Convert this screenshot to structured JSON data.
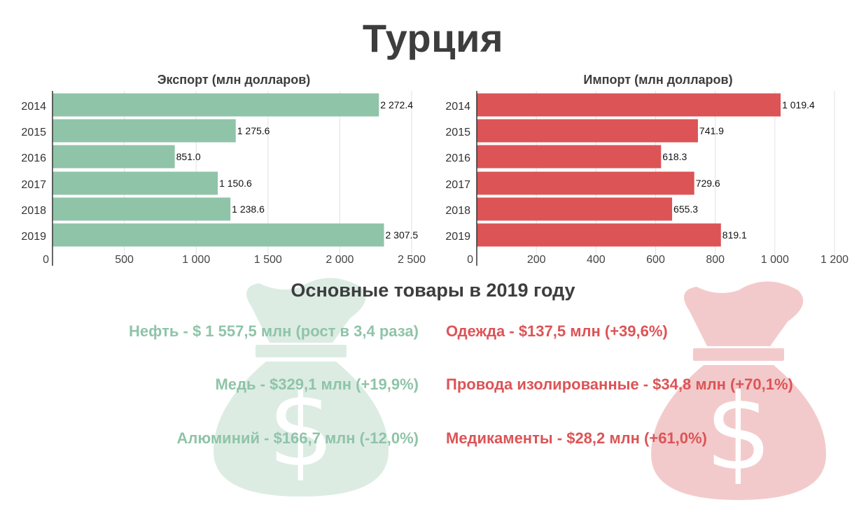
{
  "title": "Турция",
  "colors": {
    "export": "#8fc4a8",
    "import": "#dc5456",
    "export_bag": "#dcece3",
    "import_bag": "#f3cacb"
  },
  "chart_data": [
    {
      "type": "bar",
      "orientation": "horizontal",
      "title": "Экспорт (млн долларов)",
      "categories": [
        "2014",
        "2015",
        "2016",
        "2017",
        "2018",
        "2019"
      ],
      "values": [
        2272.4,
        1275.6,
        851.0,
        1150.6,
        1238.6,
        2307.5
      ],
      "value_labels": [
        "2 272.4",
        "1 275.6",
        "851.0",
        "1 150.6",
        "1 238.6",
        "2 307.5"
      ],
      "xlim": [
        0,
        2500
      ],
      "xticks": [
        0,
        500,
        1000,
        1500,
        2000,
        2500
      ],
      "xtick_labels": [
        "0",
        "500",
        "1 000",
        "1 500",
        "2 000",
        "2 500"
      ],
      "grid": true
    },
    {
      "type": "bar",
      "orientation": "horizontal",
      "title": "Импорт (млн долларов)",
      "categories": [
        "2014",
        "2015",
        "2016",
        "2017",
        "2018",
        "2019"
      ],
      "values": [
        1019.4,
        741.9,
        618.3,
        729.6,
        655.3,
        819.1
      ],
      "value_labels": [
        "1 019.4",
        "741.9",
        "618.3",
        "729.6",
        "655.3",
        "819.1"
      ],
      "xlim": [
        0,
        1200
      ],
      "xticks": [
        0,
        200,
        400,
        600,
        800,
        1000,
        1200
      ],
      "xtick_labels": [
        "0",
        "200",
        "400",
        "600",
        "800",
        "1 000",
        "1 200"
      ],
      "grid": true
    }
  ],
  "goods": {
    "heading": "Основные товары в 2019 году",
    "export": [
      "Нефть - $ 1 557,5 млн (рост в 3,4 раза)",
      "Медь - $329,1 млн (+19,9%)",
      "Алюминий - $166,7 млн (-12,0%)"
    ],
    "import": [
      "Одежда - $137,5 млн (+39,6%)",
      "Провода изолированные - $34,8 млн (+70,1%)",
      "Медикаменты - $28,2 млн (+61,0%)"
    ]
  },
  "icons": {
    "export_bag": "money-bag-dollar-icon",
    "import_bag": "money-bag-dollar-icon"
  }
}
